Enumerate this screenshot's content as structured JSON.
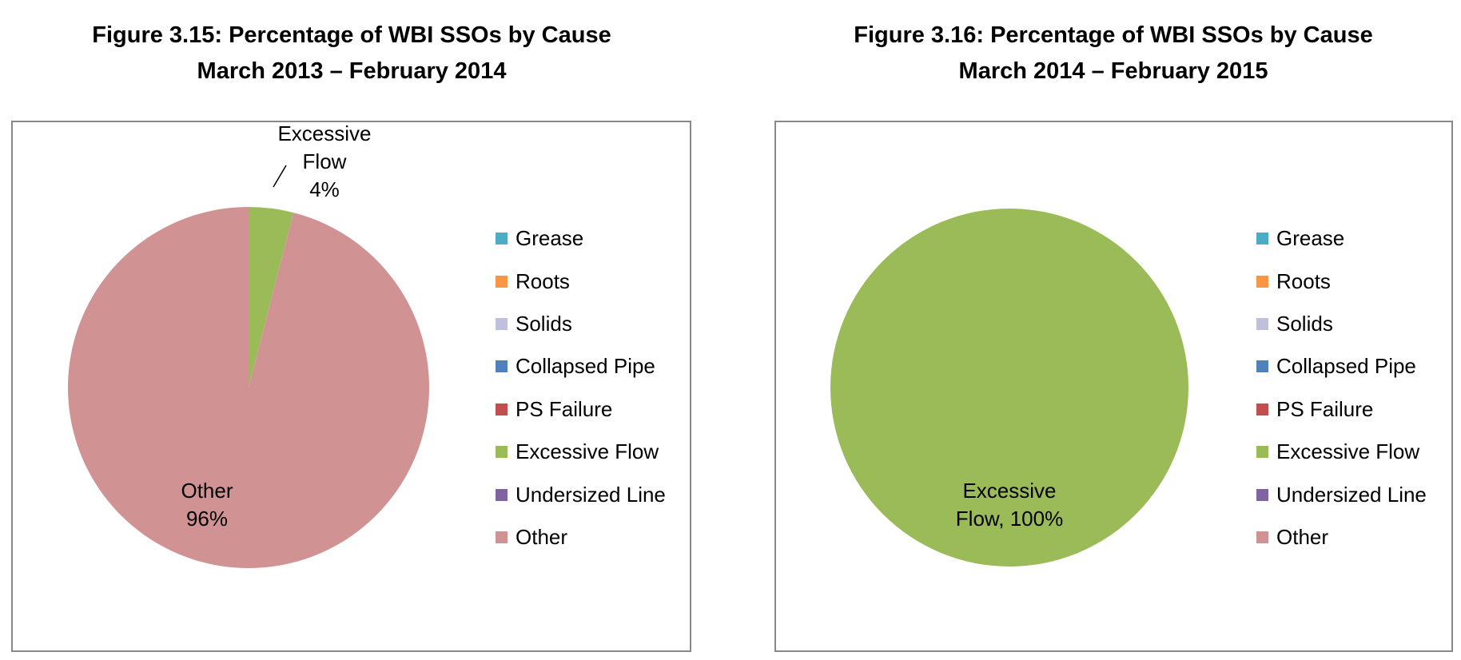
{
  "chart_data": [
    {
      "type": "pie",
      "title_line1": "Figure 3.15: Percentage of WBI SSOs by Cause",
      "title_line2": "March 2013 – February 2014",
      "categories": [
        "Grease",
        "Roots",
        "Solids",
        "Collapsed Pipe",
        "PS Failure",
        "Excessive Flow",
        "Undersized Line",
        "Other"
      ],
      "colors": [
        "#4BACC6",
        "#F79646",
        "#C0C0DD",
        "#4F81BD",
        "#C0504D",
        "#9BBB59",
        "#8064A2",
        "#D09292"
      ],
      "values": [
        0,
        0,
        0,
        0,
        0,
        4,
        0,
        96
      ],
      "data_labels": [
        {
          "category": "Excessive Flow",
          "lines": [
            "Excessive",
            "Flow",
            "4%"
          ]
        },
        {
          "category": "Other",
          "lines": [
            "Other",
            "96%"
          ]
        }
      ],
      "legend_position": "right"
    },
    {
      "type": "pie",
      "title_line1": "Figure 3.16: Percentage of WBI SSOs by Cause",
      "title_line2": "March 2014 – February 2015",
      "categories": [
        "Grease",
        "Roots",
        "Solids",
        "Collapsed Pipe",
        "PS Failure",
        "Excessive Flow",
        "Undersized Line",
        "Other"
      ],
      "colors": [
        "#4BACC6",
        "#F79646",
        "#C0C0DD",
        "#4F81BD",
        "#C0504D",
        "#9BBB59",
        "#8064A2",
        "#D09292"
      ],
      "values": [
        0,
        0,
        0,
        0,
        0,
        100,
        0,
        0
      ],
      "data_labels": [
        {
          "category": "Excessive Flow",
          "lines": [
            "Excessive",
            "Flow, 100%"
          ]
        }
      ],
      "legend_position": "right"
    }
  ]
}
